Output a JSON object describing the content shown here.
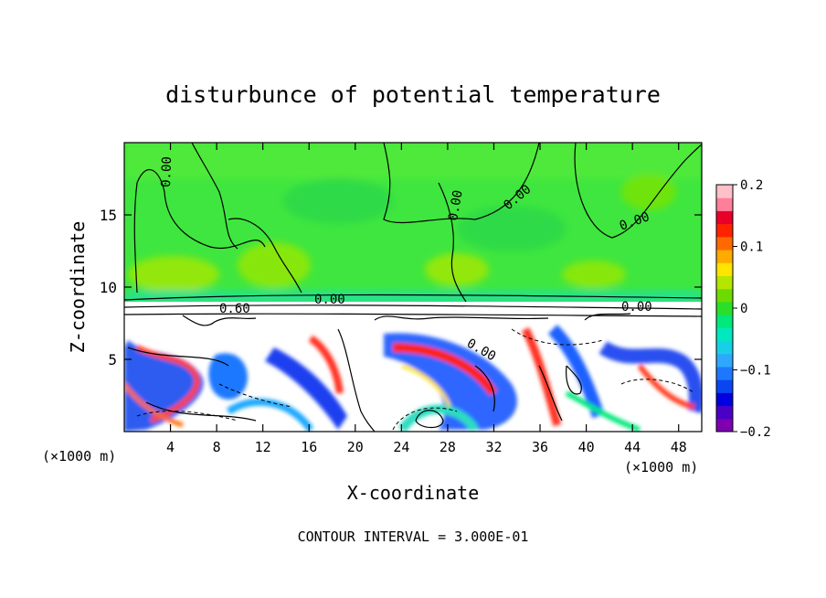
{
  "chart_data": {
    "type": "heatmap",
    "title": "disturbunce of potential temperature",
    "xlabel": "X-coordinate",
    "ylabel": "Z-coordinate",
    "x_units": "(×1000 m)",
    "x_ticks": [
      4,
      8,
      12,
      16,
      20,
      24,
      28,
      32,
      36,
      40,
      44,
      48
    ],
    "y_ticks": [
      5,
      10,
      15
    ],
    "xlim": [
      0,
      50
    ],
    "ylim": [
      0,
      20
    ],
    "colorbar": {
      "range": [
        -0.2,
        0.2
      ],
      "tick_values": [
        0.2,
        0.1,
        0,
        -0.1,
        -0.2
      ],
      "tick_labels": [
        "0.2",
        "0.1",
        "0",
        "−0.1",
        "−0.2"
      ],
      "colors": [
        "#7f00b0",
        "#4b00c8",
        "#0000e0",
        "#0a46f0",
        "#1e78ff",
        "#2ea8ff",
        "#18d0e6",
        "#00e8c0",
        "#00e87a",
        "#2adf2a",
        "#6cdc00",
        "#b4e600",
        "#ffe400",
        "#ffaa00",
        "#ff6a00",
        "#ff2200",
        "#e8002a",
        "#ff7f9a",
        "#ffc0c8"
      ]
    },
    "contour_labels": [
      "0.00",
      "0.00",
      "0.00",
      "0.00",
      "0.00",
      "0.60",
      "0.00",
      "0.00"
    ],
    "contour_interval_text": "CONTOUR INTERVAL = 3.000E-01",
    "grid": false,
    "legend": "right"
  }
}
